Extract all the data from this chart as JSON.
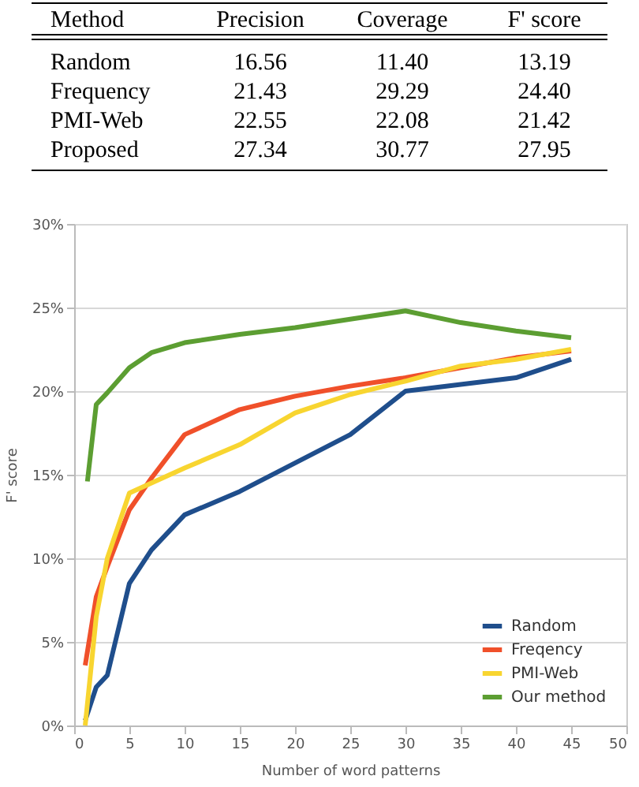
{
  "chart_data": [
    {
      "type": "other",
      "ylabel": "Method",
      "categories": [
        "Precision",
        "Coverage",
        "F' score"
      ],
      "y_categories": [
        "Random",
        "Frequency",
        "PMI-Web",
        "Proposed"
      ],
      "cell_labels": [
        [
          "16.56",
          "11.40",
          "13.19"
        ],
        [
          "21.43",
          "29.29",
          "24.40"
        ],
        [
          "22.55",
          "22.08",
          "21.42"
        ],
        [
          "27.34",
          "30.77",
          "27.95"
        ]
      ]
    },
    {
      "type": "line",
      "xlabel": "Number of word patterns",
      "ylabel": "F' score",
      "xlim": [
        0,
        50
      ],
      "xticks": [
        0,
        5,
        10,
        15,
        20,
        25,
        30,
        35,
        40,
        45,
        50
      ],
      "ylim": [
        0,
        30
      ],
      "yticks": [
        {
          "value": 0,
          "label": "0%"
        },
        {
          "value": 5,
          "label": "5%"
        },
        {
          "value": 10,
          "label": "10%"
        },
        {
          "value": 15,
          "label": "15%"
        },
        {
          "value": 20,
          "label": "20%"
        },
        {
          "value": 25,
          "label": "25%"
        },
        {
          "value": 30,
          "label": "30%"
        }
      ],
      "grid": "y",
      "legend": "bottom right",
      "marker": "none",
      "line_style": "solid",
      "x": [
        1,
        2,
        3,
        5,
        7,
        10,
        15,
        20,
        25,
        30,
        35,
        40,
        45
      ],
      "series": [
        {
          "name": "Random",
          "color": "#1f4e8c",
          "values": [
            0.3,
            2.3,
            3.0,
            8.5,
            10.5,
            12.6,
            14.0,
            15.7,
            17.4,
            20.0,
            20.4,
            20.8,
            21.9
          ]
        },
        {
          "name": "Freqency",
          "color": "#f0502a",
          "values": [
            3.6,
            7.7,
            9.5,
            12.9,
            14.8,
            17.4,
            18.9,
            19.7,
            20.3,
            20.8,
            21.4,
            22.0,
            22.4
          ]
        },
        {
          "name": "PMI-Web",
          "color": "#f8d530",
          "values": [
            0,
            6.5,
            10,
            13.9,
            14.5,
            15.4,
            16.8,
            18.7,
            19.8,
            20.6,
            21.5,
            21.9,
            22.5
          ]
        },
        {
          "name": "Our method",
          "color": "#5c9e32",
          "x": [
            1.2,
            2,
            3,
            5,
            7,
            10,
            15,
            20,
            25,
            30,
            35,
            40,
            45
          ],
          "values": [
            14.6,
            19.2,
            19.9,
            21.4,
            22.3,
            22.9,
            23.4,
            23.8,
            24.3,
            24.8,
            24.1,
            23.6,
            23.2
          ]
        }
      ]
    }
  ]
}
